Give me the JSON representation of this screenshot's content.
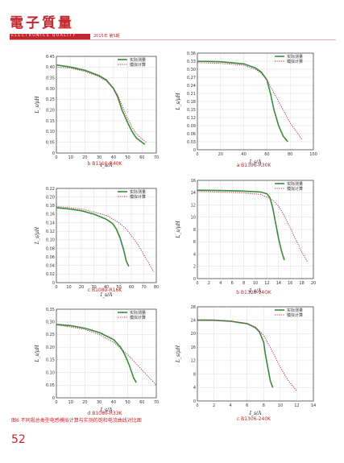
{
  "header": {
    "brand": "電子質量",
    "subtitle": "ELECTRONICS QUALITY",
    "issue": "2015年 第5期"
  },
  "figure_caption": "图6  不同规总类型电感模拟计算与实测的饱和电流曲线对比图",
  "page_number": "52",
  "legend": {
    "measured": "实际测量",
    "simulated": "模拟计算"
  },
  "colors": {
    "measured": "#3a8a3a",
    "simulated": "#b0305a",
    "accent": "#c1272d"
  },
  "chart_data": [
    {
      "type": "line",
      "caption": "b  B1110-R40K",
      "xlabel": "I_s/A",
      "ylabel": "L_s/μH",
      "xlim": [
        0,
        70
      ],
      "ylim": [
        0,
        0.45
      ],
      "xticks": [
        0,
        10,
        20,
        30,
        40,
        50,
        60,
        70
      ],
      "yticks": [
        0,
        0.05,
        0.1,
        0.15,
        0.2,
        0.25,
        0.3,
        0.35,
        0.4,
        0.45
      ],
      "series": [
        {
          "name": "实际测量",
          "x": [
            0,
            10,
            20,
            30,
            35,
            40,
            43,
            46,
            50,
            53,
            56,
            60,
            62
          ],
          "y": [
            0.41,
            0.4,
            0.385,
            0.36,
            0.34,
            0.3,
            0.26,
            0.2,
            0.14,
            0.1,
            0.07,
            0.05,
            0.04
          ]
        },
        {
          "name": "模拟计算",
          "x": [
            0,
            10,
            20,
            30,
            35,
            40,
            43,
            46,
            50,
            53,
            56,
            60,
            63
          ],
          "y": [
            0.4,
            0.395,
            0.38,
            0.355,
            0.335,
            0.3,
            0.27,
            0.22,
            0.16,
            0.12,
            0.09,
            0.065,
            0.05
          ]
        }
      ]
    },
    {
      "type": "line",
      "caption": "a  B1306-R30K",
      "xlabel": "I_s/A",
      "ylabel": "L_s/μH",
      "xlim": [
        0,
        100
      ],
      "ylim": [
        0,
        0.36
      ],
      "xticks": [
        0,
        20,
        40,
        60,
        80,
        100
      ],
      "yticks": [
        0,
        0.03,
        0.06,
        0.09,
        0.12,
        0.15,
        0.18,
        0.21,
        0.24,
        0.27,
        0.3,
        0.33,
        0.36
      ],
      "series": [
        {
          "name": "实际测量",
          "x": [
            0,
            20,
            40,
            50,
            55,
            60,
            63,
            66,
            70,
            74,
            78
          ],
          "y": [
            0.33,
            0.328,
            0.32,
            0.305,
            0.29,
            0.26,
            0.21,
            0.15,
            0.09,
            0.05,
            0.03
          ]
        },
        {
          "name": "模拟计算",
          "x": [
            0,
            20,
            40,
            50,
            55,
            60,
            65,
            70,
            75,
            80,
            85,
            90
          ],
          "y": [
            0.325,
            0.322,
            0.315,
            0.3,
            0.285,
            0.26,
            0.22,
            0.18,
            0.14,
            0.1,
            0.07,
            0.04
          ]
        }
      ]
    },
    {
      "type": "line",
      "caption": "c  B1080-R16K",
      "xlabel": "I_s/A",
      "ylabel": "L_s/μH",
      "xlim": [
        0,
        80
      ],
      "ylim": [
        0,
        0.22
      ],
      "xticks": [
        0,
        10,
        20,
        30,
        40,
        50,
        60,
        70,
        80
      ],
      "yticks": [
        0,
        0.02,
        0.04,
        0.06,
        0.08,
        0.1,
        0.12,
        0.14,
        0.16,
        0.18,
        0.2,
        0.22
      ],
      "series": [
        {
          "name": "实际测量",
          "x": [
            0,
            10,
            20,
            30,
            40,
            45,
            48,
            51,
            54,
            56,
            58
          ],
          "y": [
            0.175,
            0.172,
            0.168,
            0.16,
            0.148,
            0.138,
            0.125,
            0.105,
            0.075,
            0.05,
            0.038
          ]
        },
        {
          "name": "模拟计算",
          "x": [
            0,
            10,
            20,
            30,
            40,
            50,
            55,
            60,
            65,
            70,
            75,
            78
          ],
          "y": [
            0.178,
            0.175,
            0.172,
            0.165,
            0.157,
            0.14,
            0.128,
            0.11,
            0.09,
            0.065,
            0.04,
            0.025
          ]
        }
      ]
    },
    {
      "type": "line",
      "caption": "b  B1306-14OK",
      "xlabel": "I_s/A",
      "ylabel": "L_s/μH",
      "xlim": [
        0,
        20
      ],
      "ylim": [
        0,
        16
      ],
      "xticks": [
        0,
        2,
        4,
        6,
        8,
        10,
        12,
        14,
        16,
        18,
        20
      ],
      "yticks": [
        0,
        2,
        4,
        6,
        8,
        10,
        12,
        14,
        16
      ],
      "series": [
        {
          "name": "实际测量",
          "x": [
            0,
            4,
            8,
            11,
            12,
            12.5,
            13,
            13.5,
            14,
            14.5,
            15
          ],
          "y": [
            14.4,
            14.35,
            14.25,
            14.1,
            13.8,
            13.2,
            11.5,
            9,
            6.5,
            4.5,
            3
          ]
        },
        {
          "name": "模拟计算",
          "x": [
            0,
            4,
            8,
            11,
            13,
            14,
            15,
            16,
            17,
            18,
            19
          ],
          "y": [
            14.2,
            14.1,
            13.95,
            13.7,
            12.8,
            11.8,
            10.2,
            8.3,
            6.3,
            4.3,
            2.7
          ]
        }
      ]
    },
    {
      "type": "line",
      "caption": "d  B1080-R33K",
      "xlabel": "I_s/A",
      "ylabel": "L_s/μH",
      "xlim": [
        0,
        70
      ],
      "ylim": [
        0,
        0.35
      ],
      "xticks": [
        0,
        10,
        20,
        30,
        40,
        50,
        60,
        70
      ],
      "yticks": [
        0,
        0.05,
        0.1,
        0.15,
        0.2,
        0.25,
        0.3,
        0.35
      ],
      "series": [
        {
          "name": "实际测量",
          "x": [
            0,
            10,
            20,
            30,
            40,
            45,
            48,
            51,
            54,
            56
          ],
          "y": [
            0.29,
            0.285,
            0.275,
            0.258,
            0.23,
            0.2,
            0.17,
            0.13,
            0.08,
            0.06
          ]
        },
        {
          "name": "模拟计算",
          "x": [
            0,
            10,
            20,
            30,
            40,
            50,
            55,
            60,
            65,
            70
          ],
          "y": [
            0.288,
            0.28,
            0.27,
            0.25,
            0.22,
            0.17,
            0.14,
            0.11,
            0.08,
            0.05
          ]
        }
      ]
    },
    {
      "type": "line",
      "caption": "c  B1306-240K",
      "xlabel": "I_s/A",
      "ylabel": "L_s/μH",
      "xlim": [
        0,
        14
      ],
      "ylim": [
        0,
        28
      ],
      "xticks": [
        0,
        2,
        4,
        6,
        8,
        10,
        12,
        14
      ],
      "yticks": [
        0,
        4,
        8,
        12,
        16,
        20,
        24,
        28
      ],
      "series": [
        {
          "name": "实际测量",
          "x": [
            0,
            2,
            4,
            6,
            7,
            7.5,
            8,
            8.2,
            8.5,
            8.8,
            9.1
          ],
          "y": [
            24,
            24,
            23.7,
            23,
            21.8,
            20.5,
            17.5,
            14,
            10,
            6,
            4
          ]
        },
        {
          "name": "模拟计算",
          "x": [
            0,
            2,
            4,
            6,
            7,
            8,
            9,
            10,
            11,
            12
          ],
          "y": [
            24.2,
            24.1,
            23.8,
            23,
            22,
            19.5,
            15,
            10,
            6,
            3
          ]
        }
      ]
    }
  ]
}
